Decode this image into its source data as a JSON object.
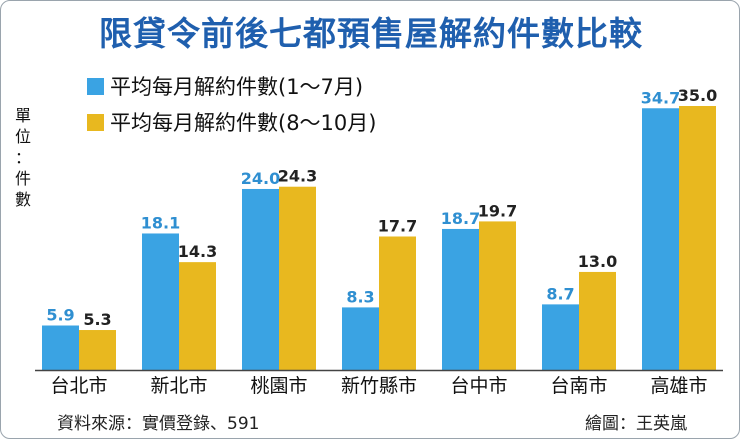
{
  "chart_data": {
    "type": "bar",
    "title": "限貸令前後七都預售屋解約件數比較",
    "unit_label": [
      "單",
      "位",
      "：",
      "件",
      "數"
    ],
    "categories": [
      "台北市",
      "新北市",
      "桃園市",
      "新竹縣市",
      "台中市",
      "台南市",
      "高雄市"
    ],
    "series": [
      {
        "name": "平均每月解約件數(1～7月)",
        "color": "#3aa3e3",
        "label_color": "#2f8fd1",
        "values": [
          5.9,
          18.1,
          24.0,
          8.3,
          18.7,
          8.7,
          34.7
        ],
        "labels": [
          "5.9",
          "18.1",
          "24.0",
          "8.3",
          "18.7",
          "8.7",
          "34.7"
        ]
      },
      {
        "name": "平均每月解約件數(8～10月)",
        "color": "#e8b81f",
        "label_color": "#222222",
        "values": [
          5.3,
          14.3,
          24.3,
          17.7,
          19.7,
          13.0,
          35.0
        ],
        "labels": [
          "5.3",
          "14.3",
          "24.3",
          "17.7",
          "19.7",
          "13.0",
          "35.0"
        ]
      }
    ],
    "ylim": [
      0,
      35
    ],
    "grid": false,
    "legend": "top-left"
  },
  "footer": {
    "source": "資料來源：實價登錄、591",
    "credit": "繪圖：王英嵐"
  }
}
